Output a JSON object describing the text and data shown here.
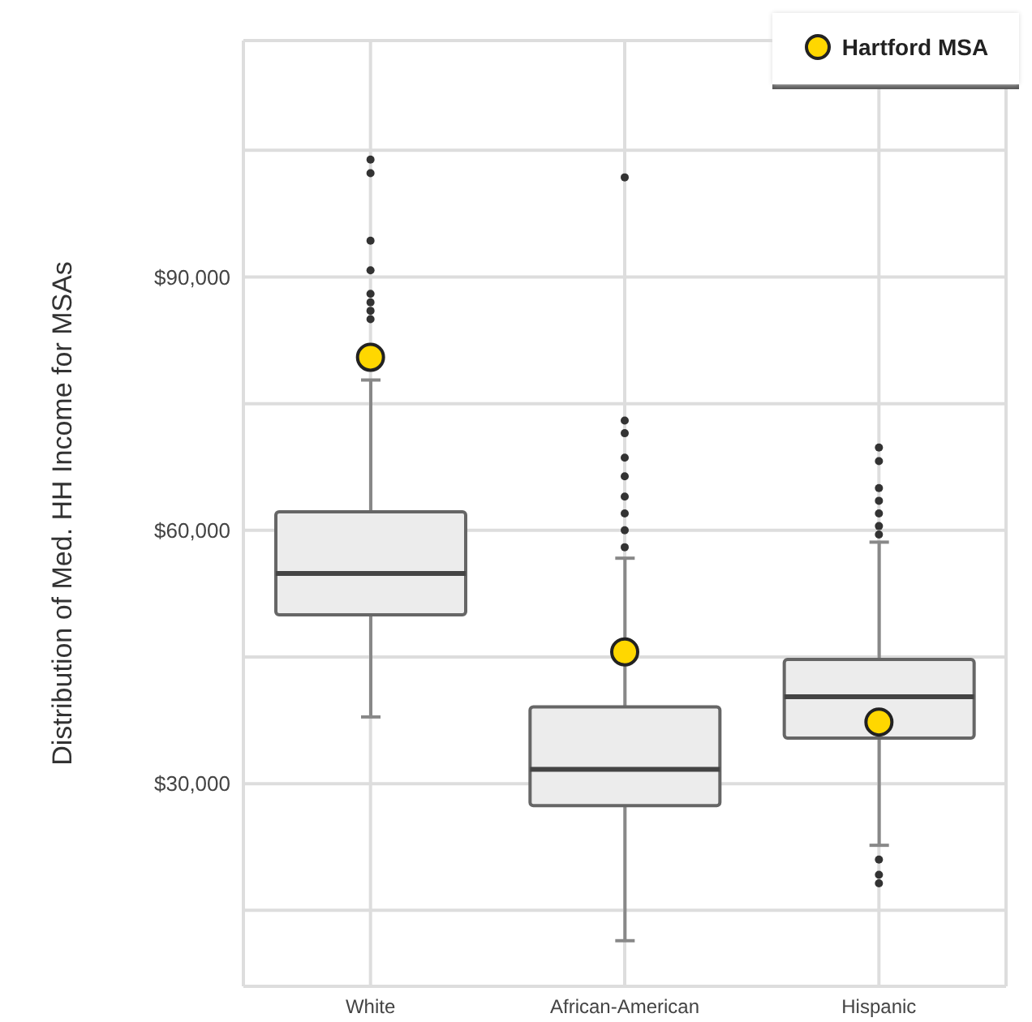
{
  "chart_data": {
    "type": "box",
    "ylabel": "Distribution of Med. HH Income for MSAs",
    "categories": [
      "White",
      "African-American",
      "Hispanic"
    ],
    "ylim": [
      6000,
      118000
    ],
    "yticks": [
      {
        "value": 15000,
        "label": null
      },
      {
        "value": 30000,
        "label": "$30,000"
      },
      {
        "value": 45000,
        "label": null
      },
      {
        "value": 60000,
        "label": "$60,000"
      },
      {
        "value": 75000,
        "label": null
      },
      {
        "value": 90000,
        "label": "$90,000"
      },
      {
        "value": 105000,
        "label": null
      }
    ],
    "grid": true,
    "legend": "top right",
    "series": [
      {
        "color": "#ececec",
        "boxes": [
          {
            "low": 37900,
            "q1": 50000,
            "median": 54900,
            "q3": 62200,
            "high": 77800,
            "outliers": [
              103900,
              102300,
              94300,
              90800,
              88000,
              87000,
              86000,
              85000
            ]
          },
          {
            "low": 11400,
            "q1": 27400,
            "median": 31700,
            "q3": 39100,
            "high": 56700,
            "outliers": [
              101800,
              73000,
              71500,
              68600,
              66400,
              64000,
              62000,
              60000,
              58000
            ]
          },
          {
            "low": 22700,
            "q1": 35400,
            "median": 40300,
            "q3": 44700,
            "high": 58600,
            "outliers": [
              69800,
              68200,
              65000,
              63500,
              62000,
              60500,
              59500,
              21000,
              19200,
              18200
            ]
          }
        ]
      },
      {
        "type": "scatter",
        "name": "Hartford MSA",
        "color": "#ffd700",
        "marker": "circle",
        "x": [
          "White",
          "African-American",
          "Hispanic"
        ],
        "values": [
          80500,
          45600,
          37300
        ]
      }
    ]
  }
}
